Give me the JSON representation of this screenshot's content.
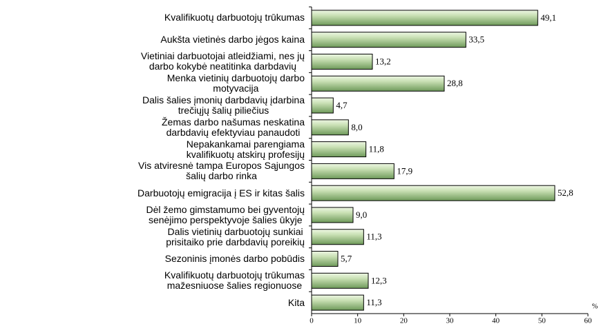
{
  "chart_data": {
    "type": "barh",
    "categories": [
      "Kvalifikuotų darbuotojų  trūkumas",
      "Aukšta vietinės darbo jėgos kaina",
      "Vietiniai darbuotojai atleidžiami, nes jų\ndarbo kokybė neatitinka darbdavių",
      "Menka vietinių darbuotojų  darbo\nmotyvacija",
      "Dalis šalies įmonių darbdavių įdarbina\ntrečiųjų šalių piliečius",
      "Žemas darbo našumas neskatina\ndarbdavių efektyviau panaudoti",
      "Nepakankamai parengiama\nkvalifikuotų atskirų profesijų",
      "Vis atviresnė tampa Europos Sąjungos\nšalių darbo rinka",
      "Darbuotojų emigracija į ES ir kitas šalis",
      "Dėl žemo gimstamumo bei gyventojų\nsenėjimo  perspektyvoje šalies ūkyje",
      "Dalis vietinių darbuotojų sunkiai\nprisitaiko prie darbdavių poreikių",
      "Sezoninis įmonės darbo pobūdis",
      "Kvalifikuotų darbuotojų trūkumas\nmažesniuose šalies regionuose",
      "Kita"
    ],
    "values": [
      49.1,
      33.5,
      13.2,
      28.8,
      4.7,
      8.0,
      11.8,
      17.9,
      52.8,
      9.0,
      11.3,
      5.7,
      12.3,
      11.3
    ],
    "value_labels": [
      "49,1",
      "33,5",
      "13,2",
      "28,8",
      "4,7",
      "8,0",
      "11,8",
      "17,9",
      "52,8",
      "9,0",
      "11,3",
      "5,7",
      "12,3",
      "11,3"
    ],
    "xlim": [
      0,
      60
    ],
    "xticks": [
      0,
      10,
      20,
      30,
      40,
      50,
      60
    ],
    "x_label": "%",
    "color": "#6e9a5a"
  }
}
